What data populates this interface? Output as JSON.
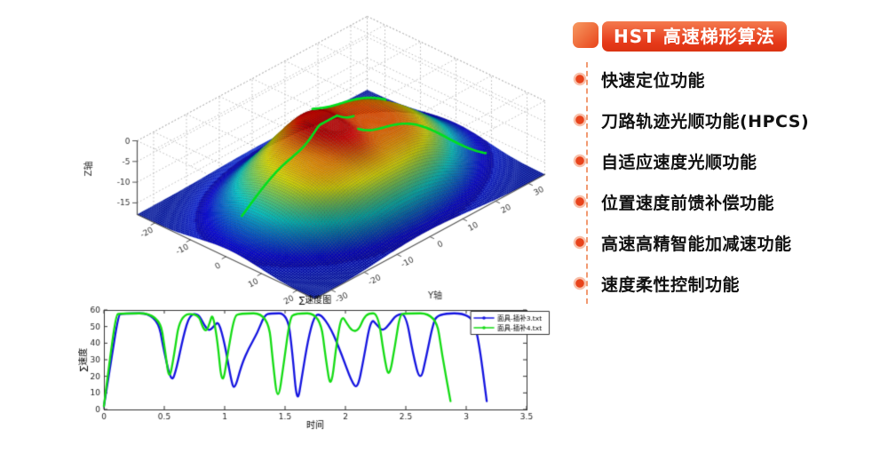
{
  "page": {
    "background": "#ffffff"
  },
  "right_panel": {
    "accent_color": "#e8441c",
    "badge": {
      "label": "HST 高速梯形算法",
      "text_color": "#ffffff",
      "gradient_top": "#f47a4e",
      "gradient_bottom": "#db3312"
    },
    "connector_color": "#f19a72",
    "items": [
      {
        "label": "快速定位功能"
      },
      {
        "label": "刀路轨迹光顺功能(HPCS)"
      },
      {
        "label": "自适应速度光顺功能"
      },
      {
        "label": "位置速度前馈补偿功能"
      },
      {
        "label": "高速高精智能加减速功能"
      },
      {
        "label": "速度柔性控制功能"
      }
    ]
  },
  "chart_data": [
    {
      "type": "surface",
      "title": "",
      "xlabel": "",
      "ylabel": "Y轴",
      "zlabel": "Z轴",
      "xlim": [
        -25,
        25
      ],
      "ylim": [
        -35,
        35
      ],
      "zlim": [
        -18,
        0
      ],
      "x_ticks": [
        -20,
        -10,
        0,
        10,
        20
      ],
      "y_ticks": [
        -30,
        -20,
        -10,
        0,
        10,
        20,
        30
      ],
      "z_ticks": [
        0,
        -5,
        -10,
        -15
      ],
      "grid": true,
      "colormap": "jet",
      "floor_color": "#000080",
      "description": "3D mesh surface of a human face mask (machining part), jet colormap from navy floor to red peak, with green machining toolpath curves on the surface",
      "surface_model": {
        "base": -17.8,
        "clip_max": -0.4,
        "bumps": [
          {
            "A": 12.6,
            "cx": 1,
            "cy": 0,
            "sx": 380,
            "sy": 880,
            "p": 1.9
          },
          {
            "A": 4.6,
            "cx": -1,
            "cy": -2,
            "sx": 90,
            "sy": 28,
            "p": 1
          },
          {
            "A": 2.4,
            "cx": -9,
            "cy": -2,
            "sx": 45,
            "sy": 300,
            "p": 1
          },
          {
            "A": 1.8,
            "cx": 9,
            "cy": -14,
            "sx": 110,
            "sy": 90,
            "p": 1
          },
          {
            "A": 1.8,
            "cx": 7,
            "cy": 12,
            "sx": 110,
            "sy": 90,
            "p": 1
          },
          {
            "A": 2.2,
            "cx": -7,
            "cy": 17,
            "sx": 150,
            "sy": 160,
            "p": 1
          },
          {
            "A": 1.5,
            "cx": 15,
            "cy": -3,
            "sx": 55,
            "sy": 140,
            "p": 1
          },
          {
            "A": -1.1,
            "cx": 11,
            "cy": -4,
            "sx": 25,
            "sy": 70,
            "p": 1
          }
        ]
      },
      "toolpaths": [
        {
          "x0": -2,
          "y0": -28,
          "x1": -2,
          "y1": 6
        },
        {
          "x0": 3,
          "y0": 2,
          "x1": 13,
          "y1": 30
        },
        {
          "x0": -9,
          "y0": 1,
          "x1": -6,
          "y1": 20
        }
      ],
      "toolpath_color": "#00e01e"
    },
    {
      "type": "line",
      "title": "∑速度图",
      "xlabel": "时间",
      "ylabel": "∑速度",
      "xlim": [
        0,
        3.5
      ],
      "ylim": [
        0,
        60
      ],
      "x_ticks": [
        0,
        0.5,
        1,
        1.5,
        2,
        2.5,
        3,
        3.5
      ],
      "y_ticks": [
        0,
        10,
        20,
        30,
        40,
        50,
        60
      ],
      "grid": false,
      "legend_position": "top-right",
      "legend": [
        "面具-插补3.txt",
        "面具-插补4.txt"
      ],
      "series": [
        {
          "name": "面具-插补3.txt",
          "color": "#1414e0",
          "points": [
            [
              0,
              2
            ],
            [
              0.05,
              25
            ],
            [
              0.12,
              57
            ],
            [
              0.15,
              58
            ],
            [
              0.44,
              58
            ],
            [
              0.5,
              34
            ],
            [
              0.56,
              16
            ],
            [
              0.6,
              24
            ],
            [
              0.66,
              45
            ],
            [
              0.71,
              57
            ],
            [
              0.78,
              58
            ],
            [
              0.83,
              51
            ],
            [
              0.87,
              47
            ],
            [
              0.92,
              51
            ],
            [
              0.95,
              53
            ],
            [
              1.0,
              40
            ],
            [
              1.05,
              19
            ],
            [
              1.08,
              11
            ],
            [
              1.14,
              27
            ],
            [
              1.2,
              37
            ],
            [
              1.27,
              46
            ],
            [
              1.33,
              57
            ],
            [
              1.38,
              58
            ],
            [
              1.52,
              58
            ],
            [
              1.56,
              35
            ],
            [
              1.6,
              2
            ],
            [
              1.64,
              20
            ],
            [
              1.69,
              42
            ],
            [
              1.74,
              56
            ],
            [
              1.79,
              58
            ],
            [
              1.88,
              49
            ],
            [
              1.97,
              33
            ],
            [
              2.05,
              17
            ],
            [
              2.1,
              12
            ],
            [
              2.15,
              30
            ],
            [
              2.21,
              55
            ],
            [
              2.26,
              51
            ],
            [
              2.31,
              47
            ],
            [
              2.37,
              52
            ],
            [
              2.42,
              57
            ],
            [
              2.5,
              58
            ],
            [
              2.56,
              33
            ],
            [
              2.62,
              16
            ],
            [
              2.67,
              32
            ],
            [
              2.72,
              50
            ],
            [
              2.76,
              58
            ],
            [
              3.04,
              58
            ],
            [
              3.1,
              44
            ],
            [
              3.17,
              5
            ]
          ]
        },
        {
          "name": "面具-插补4.txt",
          "color": "#14dc14",
          "points": [
            [
              0,
              2
            ],
            [
              0.04,
              25
            ],
            [
              0.1,
              57
            ],
            [
              0.13,
              58
            ],
            [
              0.46,
              58
            ],
            [
              0.51,
              34
            ],
            [
              0.54,
              17
            ],
            [
              0.58,
              32
            ],
            [
              0.63,
              57
            ],
            [
              0.78,
              58
            ],
            [
              0.82,
              49
            ],
            [
              0.85,
              47
            ],
            [
              0.88,
              53
            ],
            [
              0.9,
              58
            ],
            [
              0.94,
              42
            ],
            [
              0.98,
              12
            ],
            [
              1.03,
              36
            ],
            [
              1.08,
              56
            ],
            [
              1.12,
              58
            ],
            [
              1.36,
              58
            ],
            [
              1.4,
              28
            ],
            [
              1.44,
              3
            ],
            [
              1.49,
              28
            ],
            [
              1.54,
              55
            ],
            [
              1.58,
              58
            ],
            [
              1.79,
              58
            ],
            [
              1.84,
              29
            ],
            [
              1.88,
              11
            ],
            [
              1.93,
              42
            ],
            [
              1.97,
              57
            ],
            [
              2.01,
              52
            ],
            [
              2.06,
              47
            ],
            [
              2.11,
              48
            ],
            [
              2.15,
              55
            ],
            [
              2.19,
              58
            ],
            [
              2.27,
              58
            ],
            [
              2.32,
              32
            ],
            [
              2.36,
              18
            ],
            [
              2.41,
              38
            ],
            [
              2.45,
              57
            ],
            [
              2.49,
              58
            ],
            [
              2.75,
              58
            ],
            [
              2.8,
              33
            ],
            [
              2.87,
              5
            ]
          ]
        }
      ]
    }
  ]
}
